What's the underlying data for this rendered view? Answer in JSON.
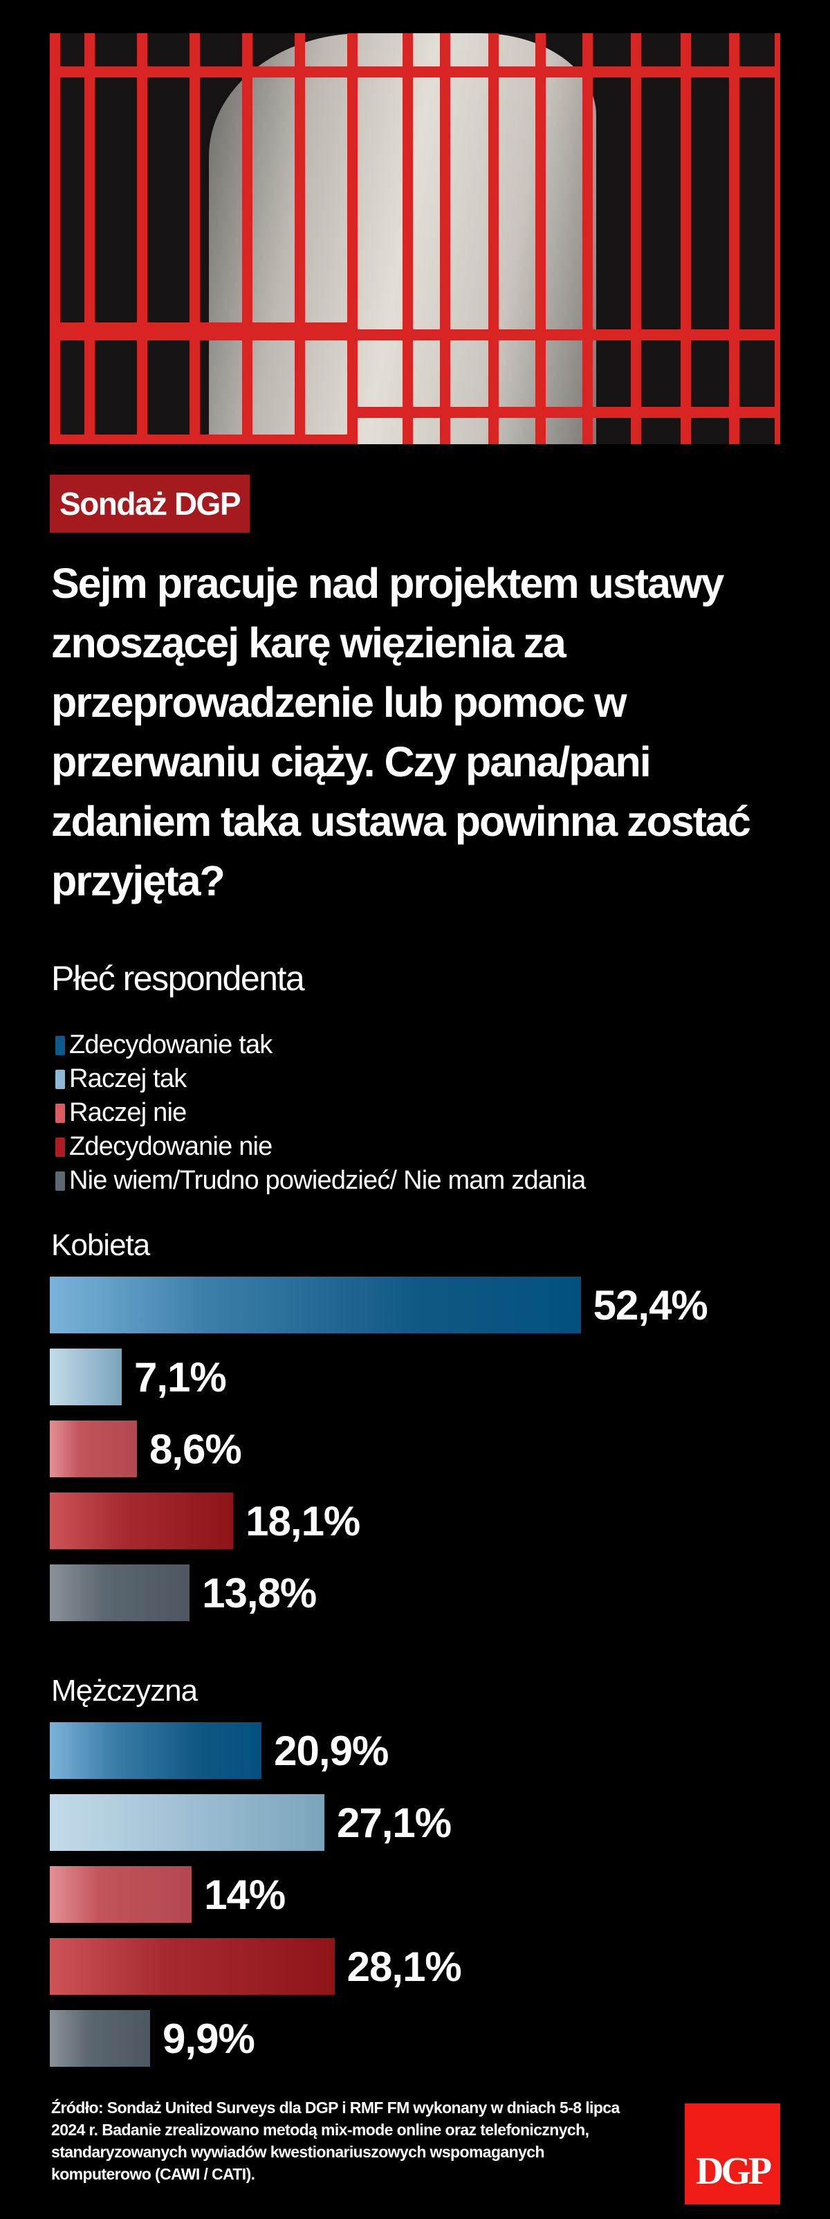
{
  "header": {
    "photo_description": "Red prison bars over black-and-white image of a pregnant belly",
    "badge": "Sondaż DGP"
  },
  "title": "Sejm pracuje nad projektem ustawy znoszącej karę więzienia za przeprowadzenie lub pomoc w przerwaniu ciąży. Czy pana/pani zdaniem taka ustawa powinna zostać przyjęta?",
  "subtitle": "Płeć respondenta",
  "legend": [
    {
      "label": "Zdecydowanie tak",
      "color": "#0b5a8c"
    },
    {
      "label": "Raczej tak",
      "color": "#8fb8d6"
    },
    {
      "label": "Raczej nie",
      "color": "#d95c63"
    },
    {
      "label": "Zdecydowanie nie",
      "color": "#b01c24"
    },
    {
      "label": "Nie wiem/Trudno powiedzieć/ Nie mam zdania",
      "color": "#5e6873"
    }
  ],
  "groups": [
    {
      "label": "Kobieta",
      "values": [
        {
          "value": 52.4,
          "display": "52,4%"
        },
        {
          "value": 7.1,
          "display": "7,1%"
        },
        {
          "value": 8.6,
          "display": "8,6%"
        },
        {
          "value": 18.1,
          "display": "18,1%"
        },
        {
          "value": 13.8,
          "display": "13,8%"
        }
      ]
    },
    {
      "label": "Mężczyzna",
      "values": [
        {
          "value": 20.9,
          "display": "20,9%"
        },
        {
          "value": 27.1,
          "display": "27,1%"
        },
        {
          "value": 14,
          "display": "14%"
        },
        {
          "value": 28.1,
          "display": "28,1%"
        },
        {
          "value": 9.9,
          "display": "9,9%"
        }
      ]
    }
  ],
  "footer": {
    "source": "Źródło: Sondaż United Surveys dla DGP i RMF FM wykonany w dniach 5-8 lipca 2024 r. Badanie zrealizowano metodą mix-mode online oraz telefonicznych, standaryzowanych wywiadów kwestionariuszowych wspomaganych komputerowo (CAWI / CATI).",
    "logo": "DGP",
    "logo_color": "#ef1b14"
  },
  "chart_data": {
    "type": "bar",
    "orientation": "horizontal",
    "title": "Sejm pracuje nad projektem ustawy znoszącej karę więzienia za przeprowadzenie lub pomoc w przerwaniu ciąży. Czy pana/pani zdaniem taka ustawa powinna zostać przyjęta?",
    "subtitle": "Płeć respondenta",
    "categories": [
      "Zdecydowanie tak",
      "Raczej tak",
      "Raczej nie",
      "Zdecydowanie nie",
      "Nie wiem/Trudno powiedzieć/ Nie mam zdania"
    ],
    "series": [
      {
        "name": "Kobieta",
        "values": [
          52.4,
          7.1,
          8.6,
          18.1,
          13.8
        ]
      },
      {
        "name": "Mężczyzna",
        "values": [
          20.9,
          27.1,
          14,
          28.1,
          9.9
        ]
      }
    ],
    "unit": "%",
    "xlabel": "",
    "ylabel": "",
    "legend_position": "top",
    "grid": false,
    "source": "Sondaż United Surveys dla DGP i RMF FM, 5-8 lipca 2024 r."
  }
}
